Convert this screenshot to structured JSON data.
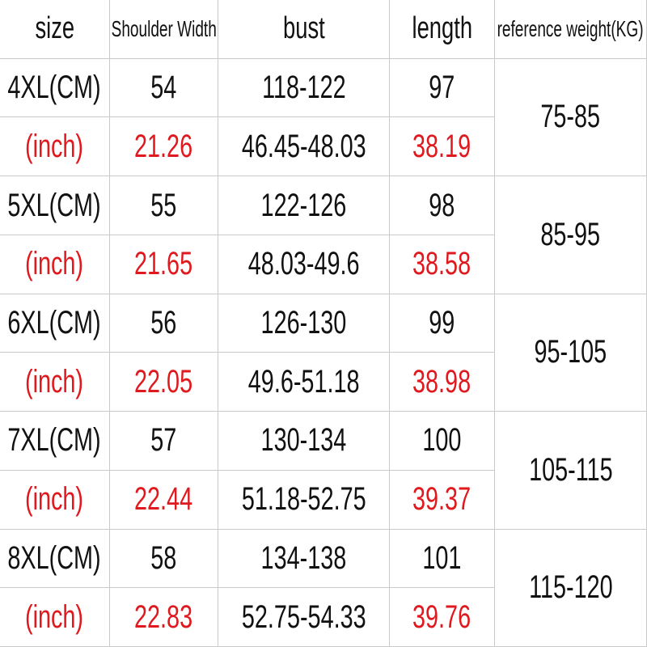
{
  "table": {
    "header": [
      "size",
      "Shoulder Width",
      "bust",
      "length",
      "reference weight(KG)"
    ],
    "groups": [
      {
        "cm": [
          "4XL(CM)",
          "54",
          "118-122",
          "97"
        ],
        "inch": [
          "(inch)",
          "21.26",
          "46.45-48.03",
          "38.19"
        ],
        "weight": "75-85"
      },
      {
        "cm": [
          "5XL(CM)",
          "55",
          "122-126",
          "98"
        ],
        "inch": [
          "(inch)",
          "21.65",
          "48.03-49.6",
          "38.58"
        ],
        "weight": "85-95"
      },
      {
        "cm": [
          "6XL(CM)",
          "56",
          "126-130",
          "99"
        ],
        "inch": [
          "(inch)",
          "22.05",
          "49.6-51.18",
          "38.98"
        ],
        "weight": "95-105"
      },
      {
        "cm": [
          "7XL(CM)",
          "57",
          "130-134",
          "100"
        ],
        "inch": [
          "(inch)",
          "22.44",
          "51.18-52.75",
          "39.37"
        ],
        "weight": "105-115"
      },
      {
        "cm": [
          "8XL(CM)",
          "58",
          "134-138",
          "101"
        ],
        "inch": [
          "(inch)",
          "22.83",
          "52.75-54.33",
          "39.76"
        ],
        "weight": "115-120"
      }
    ]
  }
}
